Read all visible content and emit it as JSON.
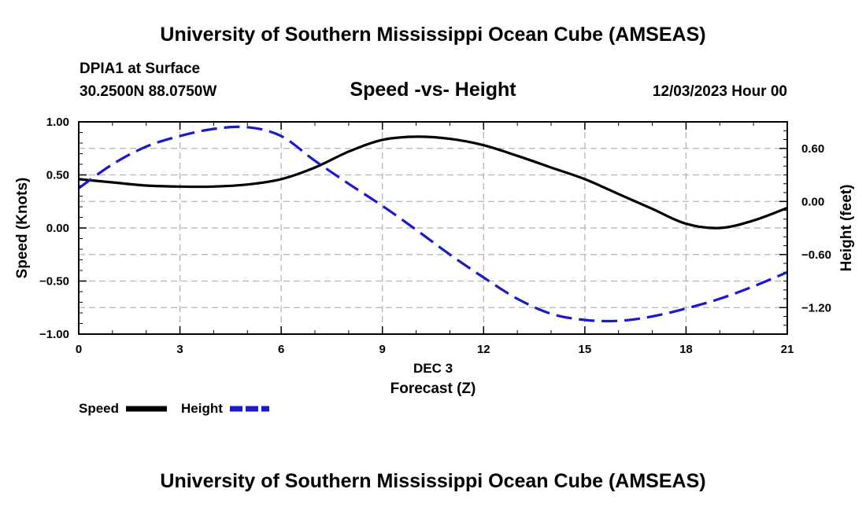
{
  "header": {
    "title": "University of Southern Mississippi Ocean Cube (AMSEAS)",
    "station": "DPIA1 at Surface",
    "coords": "30.2500N  88.0750W",
    "chart_title": "Speed -vs- Height",
    "datetime": "12/03/2023 Hour 00"
  },
  "footer": {
    "title": "University of Southern Mississippi Ocean Cube (AMSEAS)"
  },
  "colors": {
    "speed": "#000000",
    "height": "#1a1acc",
    "grid": "#b4b4b4"
  },
  "chart_data": {
    "type": "line",
    "title": "Speed -vs- Height",
    "xlabel": "Forecast (Z)",
    "xlabel_date": "DEC 3",
    "ylabel_left": "Speed (Knots)",
    "ylabel_right": "Height (feet)",
    "xlim": [
      0,
      21
    ],
    "ylim_left": [
      -1.0,
      1.0
    ],
    "ylim_right": [
      -1.5,
      0.9
    ],
    "x_ticks": [
      0,
      3,
      6,
      9,
      12,
      15,
      18,
      21
    ],
    "x_tick_labels": [
      "0",
      "3",
      "6",
      "9",
      "12",
      "15",
      "18",
      "21"
    ],
    "y_left_ticks": [
      1.0,
      0.5,
      0.0,
      -0.5,
      -1.0
    ],
    "y_left_tick_labels": [
      "1.00",
      "0.50",
      "0.00",
      "−0.50",
      "−1.00"
    ],
    "y_right_ticks": [
      0.6,
      0.0,
      -0.6,
      -1.2
    ],
    "y_right_tick_labels": [
      "0.60",
      "0.00",
      "−0.60",
      "−1.20"
    ],
    "grid": true,
    "legend": {
      "placement": "bottom-left",
      "items": [
        {
          "name": "Speed",
          "style": "solid"
        },
        {
          "name": "Height",
          "style": "dashed"
        }
      ]
    },
    "series": [
      {
        "name": "Speed",
        "axis": "left",
        "style": "solid",
        "x": [
          0,
          1,
          2,
          3,
          4,
          5,
          6,
          7,
          8,
          9,
          10,
          11,
          12,
          13,
          14,
          15,
          16,
          17,
          18,
          19,
          20,
          21
        ],
        "values": [
          0.46,
          0.43,
          0.4,
          0.39,
          0.39,
          0.41,
          0.46,
          0.57,
          0.72,
          0.83,
          0.86,
          0.84,
          0.78,
          0.68,
          0.57,
          0.46,
          0.32,
          0.18,
          0.04,
          0.0,
          0.07,
          0.19
        ]
      },
      {
        "name": "Height",
        "axis": "right",
        "style": "dashed",
        "x": [
          0,
          1,
          2,
          3,
          4,
          5,
          6,
          7,
          8,
          9,
          10,
          11,
          12,
          13,
          14,
          15,
          16,
          17,
          18,
          19,
          20,
          21
        ],
        "values": [
          0.15,
          0.42,
          0.62,
          0.74,
          0.82,
          0.84,
          0.74,
          0.46,
          0.2,
          -0.05,
          -0.32,
          -0.6,
          -0.86,
          -1.1,
          -1.27,
          -1.34,
          -1.35,
          -1.3,
          -1.21,
          -1.1,
          -0.96,
          -0.8
        ]
      }
    ]
  }
}
